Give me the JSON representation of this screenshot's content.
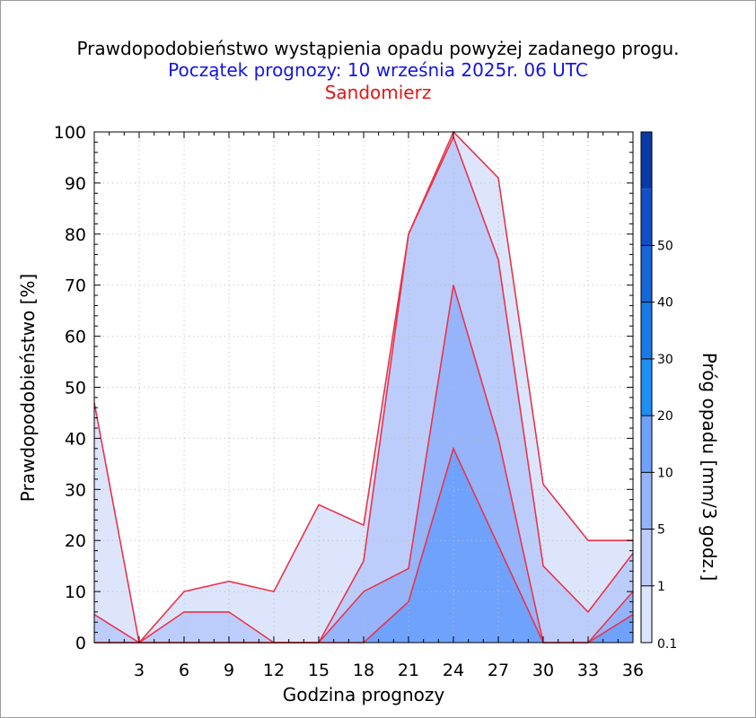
{
  "title": "Prawdopodobieństwo wystąpienia opadu powyżej zadanego progu.",
  "subtitle": "Początek prognozy: 10 września 2025r. 06 UTC",
  "location": "Sandomierz",
  "colors": {
    "title": "#000000",
    "subtitle": "#1414e6",
    "location": "#e61414",
    "series_line": "#e8344a",
    "grid": "#bbbbbb"
  },
  "chart_data": {
    "type": "area",
    "xlabel": "Godzina prognozy",
    "ylabel": "Prawdopodobieństwo [%]",
    "xlim": [
      0,
      36
    ],
    "ylim": [
      0,
      100
    ],
    "x_ticks": [
      3,
      6,
      9,
      12,
      15,
      18,
      21,
      24,
      27,
      30,
      33,
      36
    ],
    "y_ticks": [
      0,
      10,
      20,
      30,
      40,
      50,
      60,
      70,
      80,
      90,
      100
    ],
    "grid": true,
    "x": [
      0,
      3,
      6,
      9,
      12,
      15,
      18,
      21,
      24,
      27,
      30,
      33,
      36
    ],
    "series": [
      {
        "name": "0.1",
        "color": "#dde5fc",
        "values": [
          47,
          0,
          10,
          12,
          10,
          27,
          23,
          80,
          100,
          91,
          31,
          20,
          20
        ]
      },
      {
        "name": "1",
        "color": "#bccdfb",
        "values": [
          5.5,
          0,
          6,
          6,
          0,
          0,
          16,
          80,
          99,
          75,
          15,
          6,
          17.5
        ]
      },
      {
        "name": "5",
        "color": "#95b4fb",
        "values": [
          0,
          0,
          0,
          0,
          0,
          0,
          10,
          14.5,
          70,
          40,
          0,
          0,
          10
        ]
      },
      {
        "name": "10",
        "color": "#6fa2fd",
        "values": [
          0,
          0,
          0,
          0,
          0,
          0,
          0,
          8,
          38,
          19,
          0,
          0,
          5.5
        ]
      }
    ],
    "colorbar": {
      "label": "Próg opadu [mm/3 godz.]",
      "tick_labels": [
        "0.1",
        "1",
        "5",
        "10",
        "20",
        "30",
        "40",
        "50"
      ],
      "colors": [
        "#dde5fc",
        "#bccdfb",
        "#95b4fb",
        "#6fa2fd",
        "#1f8ef5",
        "#1a7ae6",
        "#1566d8",
        "#104fc6",
        "#0a3aa8"
      ]
    }
  }
}
